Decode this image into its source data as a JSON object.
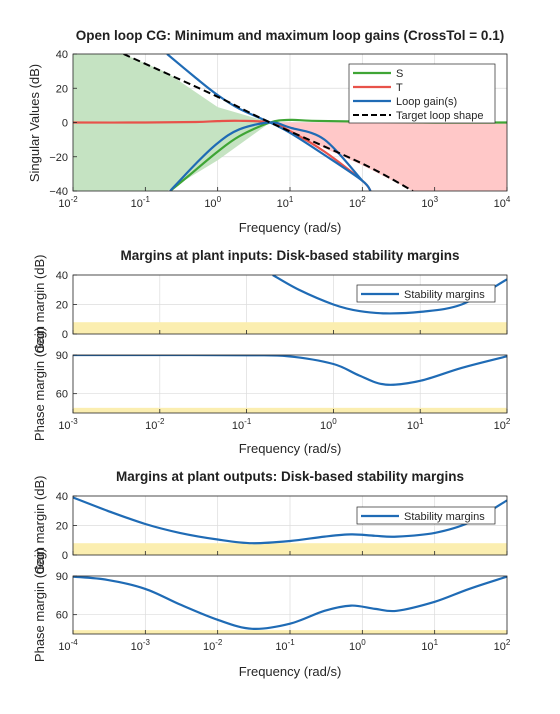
{
  "chart_data": [
    {
      "type": "line",
      "title": "Open loop CG: Minimum and maximum loop gains (CrossTol = 0.1)",
      "xlabel": "Frequency (rad/s)",
      "ylabel": "Singular Values (dB)",
      "xscale": "log",
      "xlim": [
        0.01,
        10000
      ],
      "ylim": [
        -40,
        40
      ],
      "xtick_exponents": [
        "-2",
        "-1",
        "0",
        "1",
        "2",
        "3",
        "4"
      ],
      "yticks": [
        40,
        20,
        0,
        -20,
        -40
      ],
      "grid": true,
      "legend": "top-right",
      "shaded_regions": [
        {
          "color": "#c5e3c2",
          "x": [
            0.01,
            0.05,
            0.2,
            1,
            5.3
          ],
          "upper": [
            40,
            40,
            29,
            9,
            0
          ],
          "lower": [
            -40,
            -40,
            -40,
            -22,
            0
          ]
        },
        {
          "color": "#ffc8c8",
          "x": [
            5.3,
            10,
            100,
            500,
            1000,
            10000
          ],
          "upper": [
            0,
            0,
            0,
            0,
            0,
            0
          ],
          "lower": [
            0,
            -6,
            -25,
            -40,
            -40,
            -40
          ]
        }
      ],
      "series": [
        {
          "name": "S",
          "color": "#3fa535",
          "style": "solid",
          "x": [
            0.22,
            0.4,
            1,
            2,
            5.3,
            10,
            20,
            100,
            1000,
            10000
          ],
          "y": [
            -40,
            -31,
            -17,
            -8,
            0,
            1.5,
            1,
            0.5,
            0,
            0
          ]
        },
        {
          "name": "T",
          "color": "#e8524a",
          "style": "solid",
          "x": [
            0.01,
            0.1,
            0.5,
            1,
            2,
            5.3,
            10,
            30,
            100,
            130
          ],
          "y": [
            0,
            0,
            0.3,
            0.8,
            1,
            0,
            -5,
            -17,
            -34,
            -40
          ]
        },
        {
          "name": "Loop gain(s)",
          "color": "#1f6bb5",
          "style": "solid",
          "x": [
            0.2,
            0.5,
            1,
            2,
            5.3,
            10,
            30,
            100,
            130
          ],
          "y": [
            40,
            26,
            16,
            8,
            0,
            -6,
            -19,
            -34,
            -40
          ]
        },
        {
          "name": "Loop gain(s)",
          "color": "#1f6bb5",
          "style": "solid",
          "x": [
            0.22,
            0.5,
            1,
            2,
            5.3,
            10,
            30,
            100
          ],
          "y": [
            -40,
            -24,
            -12,
            -4,
            0,
            -3,
            -10,
            -34
          ]
        },
        {
          "name": "Target loop shape",
          "color": "#000000",
          "style": "dashed",
          "x": [
            0.05,
            1,
            5.3,
            100,
            500
          ],
          "y": [
            40,
            15,
            0,
            -24,
            -40
          ]
        }
      ]
    },
    {
      "type": "line",
      "title": "Margins at plant inputs: Disk-based stability margins",
      "xlabel": "Frequency (rad/s)",
      "xscale": "log",
      "xlim": [
        0.001,
        100
      ],
      "xtick_exponents": [
        "-3",
        "-2",
        "-1",
        "0",
        "1",
        "2"
      ],
      "grid": true,
      "legend": "top-right",
      "subplots": [
        {
          "ylabel": "Gain margin (dB)",
          "ylim": [
            0,
            40
          ],
          "yticks": [
            40,
            20,
            0
          ],
          "band": [
            0,
            8
          ],
          "series": [
            {
              "name": "Stability margins",
              "color": "#1f6bb5",
              "x": [
                0.2,
                0.4,
                1,
                2,
                4,
                10,
                30,
                100
              ],
              "y": [
                40,
                30,
                20,
                15.5,
                14,
                15,
                20,
                37
              ]
            }
          ]
        },
        {
          "ylabel": "Phase margin (deg)",
          "ylim": [
            45,
            90
          ],
          "yticks": [
            90,
            60
          ],
          "band": [
            45,
            49
          ],
          "series": [
            {
              "name": "Stability margins",
              "color": "#1f6bb5",
              "x": [
                0.001,
                0.01,
                0.1,
                0.3,
                1,
                2,
                4,
                10,
                30,
                100
              ],
              "y": [
                90,
                90,
                89.8,
                89,
                83,
                74,
                67,
                70,
                80,
                89
              ]
            }
          ]
        }
      ]
    },
    {
      "type": "line",
      "title": "Margins at plant outputs: Disk-based stability margins",
      "xlabel": "Frequency (rad/s)",
      "xscale": "log",
      "xlim": [
        0.0001,
        100
      ],
      "xtick_exponents": [
        "-4",
        "-3",
        "-2",
        "-1",
        "0",
        "1",
        "2"
      ],
      "grid": true,
      "legend": "top-right",
      "subplots": [
        {
          "ylabel": "Gain margin (dB)",
          "ylim": [
            0,
            40
          ],
          "yticks": [
            40,
            20,
            0
          ],
          "band": [
            0,
            8
          ],
          "series": [
            {
              "name": "Stability margins",
              "color": "#1f6bb5",
              "x": [
                0.0001,
                0.0003,
                0.001,
                0.003,
                0.01,
                0.03,
                0.1,
                0.3,
                0.7,
                1.5,
                3,
                10,
                30,
                100
              ],
              "y": [
                39,
                30,
                21,
                15,
                10.5,
                8,
                9.5,
                12.5,
                14,
                13,
                12.5,
                15,
                22,
                37
              ]
            }
          ]
        },
        {
          "ylabel": "Phase margin (deg)",
          "ylim": [
            45,
            90
          ],
          "yticks": [
            90,
            60
          ],
          "band": [
            45,
            48
          ],
          "series": [
            {
              "name": "Stability margins",
              "color": "#1f6bb5",
              "x": [
                0.0001,
                0.0003,
                0.001,
                0.003,
                0.01,
                0.03,
                0.1,
                0.3,
                0.7,
                1.5,
                3,
                10,
                30,
                100
              ],
              "y": [
                89.5,
                87,
                80,
                68,
                56,
                49,
                53,
                63,
                67,
                64.5,
                63,
                70,
                80,
                89.5
              ]
            }
          ]
        }
      ]
    }
  ]
}
